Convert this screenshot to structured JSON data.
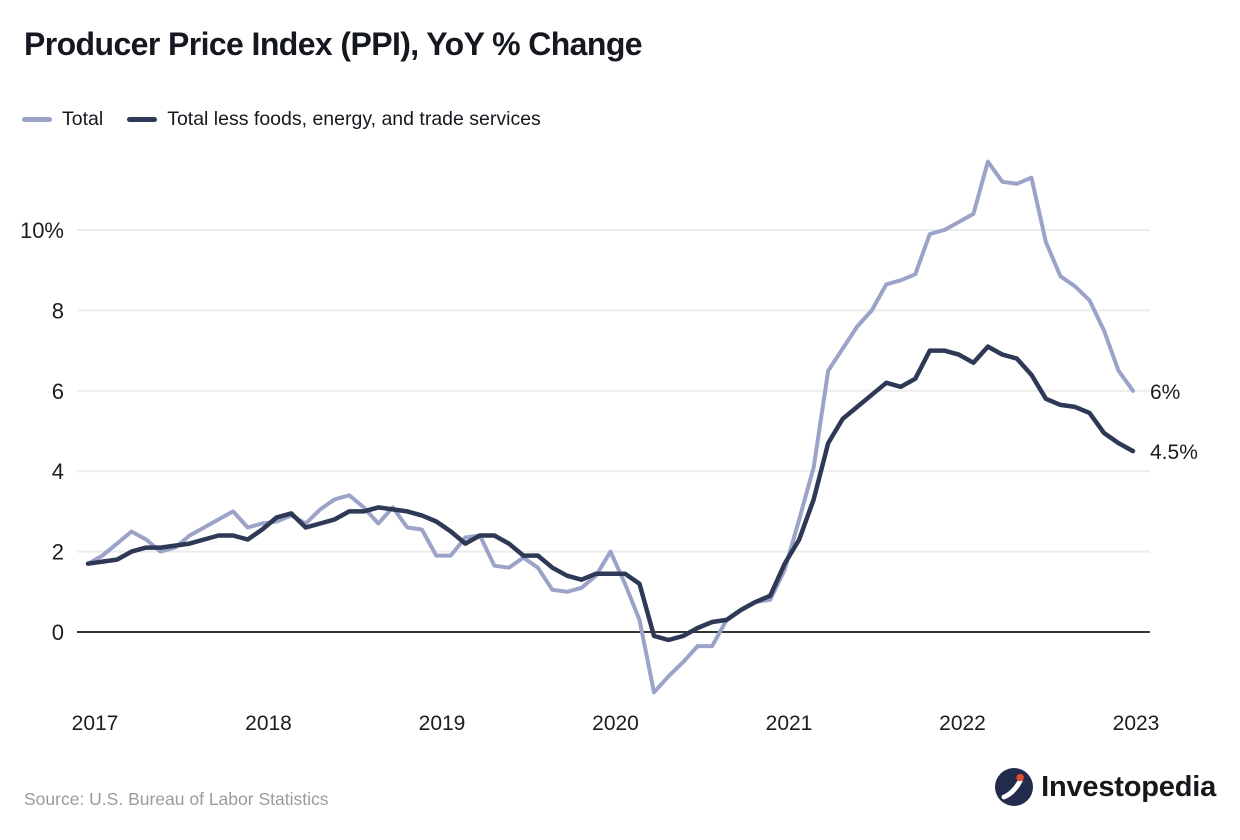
{
  "header": {
    "title": "Producer Price Index (PPI), YoY % Change"
  },
  "legend": [
    {
      "label": "Total",
      "color": "#9BA3C9"
    },
    {
      "label": "Total less foods, energy, and trade services",
      "color": "#2D3955"
    }
  ],
  "chart_data": {
    "type": "line",
    "title": "Producer Price Index (PPI), YoY % Change",
    "x_unit": "month",
    "x_range": [
      "2017-01",
      "2023-01"
    ],
    "x_tick_labels": [
      "2017",
      "2018",
      "2019",
      "2020",
      "2021",
      "2022",
      "2023"
    ],
    "y_ticks": [
      10,
      8,
      6,
      4,
      2,
      0
    ],
    "y_tick_labels": [
      "10%",
      "8",
      "6",
      "4",
      "2",
      "0"
    ],
    "ylim": [
      -2.2,
      12
    ],
    "grid": "horizontal",
    "legend_position": "top-left",
    "series": [
      {
        "name": "Total",
        "color": "#9BA3C9",
        "stroke_width": 4,
        "end_label": "6%",
        "values": [
          1.7,
          1.9,
          2.2,
          2.5,
          2.3,
          2.0,
          2.1,
          2.4,
          2.6,
          2.8,
          3.0,
          2.6,
          2.7,
          2.75,
          2.9,
          2.7,
          3.05,
          3.3,
          3.4,
          3.1,
          2.7,
          3.1,
          2.6,
          2.55,
          1.9,
          1.9,
          2.35,
          2.4,
          1.65,
          1.6,
          1.85,
          1.6,
          1.05,
          1.0,
          1.1,
          1.4,
          2.0,
          1.2,
          0.3,
          -1.5,
          -1.1,
          -0.75,
          -0.35,
          -0.35,
          0.3,
          0.55,
          0.75,
          0.8,
          1.55,
          2.8,
          4.1,
          6.5,
          7.05,
          7.6,
          8.0,
          8.65,
          8.75,
          8.9,
          9.9,
          10.0,
          10.2,
          10.4,
          11.7,
          11.2,
          11.15,
          11.3,
          9.7,
          8.85,
          8.6,
          8.25,
          7.5,
          6.5,
          6.0
        ]
      },
      {
        "name": "Total less foods, energy, and trade services",
        "color": "#2D3955",
        "stroke_width": 4.5,
        "end_label": "4.5%",
        "values": [
          1.7,
          1.75,
          1.8,
          2.0,
          2.1,
          2.1,
          2.15,
          2.2,
          2.3,
          2.4,
          2.4,
          2.3,
          2.55,
          2.85,
          2.95,
          2.6,
          2.7,
          2.8,
          3.0,
          3.0,
          3.1,
          3.05,
          3.0,
          2.9,
          2.75,
          2.5,
          2.2,
          2.4,
          2.4,
          2.2,
          1.9,
          1.9,
          1.6,
          1.4,
          1.3,
          1.45,
          1.45,
          1.45,
          1.2,
          -0.1,
          -0.2,
          -0.1,
          0.1,
          0.25,
          0.3,
          0.55,
          0.75,
          0.9,
          1.7,
          2.3,
          3.3,
          4.7,
          5.3,
          5.6,
          5.9,
          6.2,
          6.1,
          6.3,
          7.0,
          7.0,
          6.9,
          6.7,
          7.1,
          6.9,
          6.8,
          6.4,
          5.8,
          5.65,
          5.6,
          5.45,
          4.95,
          4.7,
          4.5
        ]
      }
    ]
  },
  "footer": {
    "source": "Source: U.S. Bureau of Labor Statistics",
    "brand": "Investopedia"
  },
  "colors": {
    "background": "#ffffff",
    "gridline": "#ececec",
    "zero_line": "#333333",
    "axis_text": "#1d1d1d",
    "title_text": "#15181f",
    "source_text": "#9b9b9b",
    "logo_circle": "#222B4C",
    "logo_dot": "#E34A2E"
  }
}
